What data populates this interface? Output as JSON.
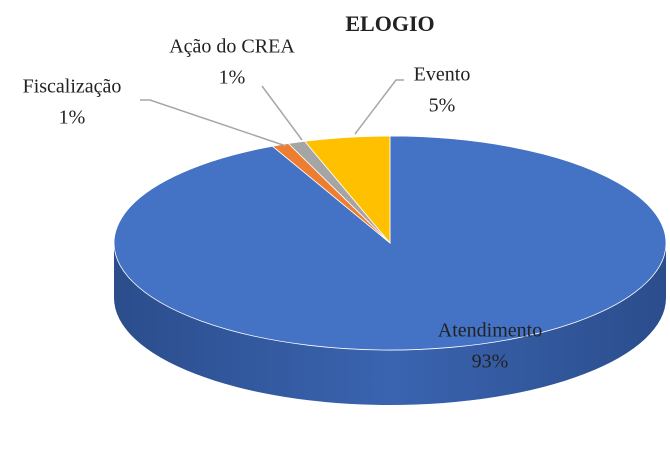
{
  "chart_data": {
    "type": "pie",
    "title": "ELOGIO",
    "categories": [
      "Atendimento",
      "Fiscalização",
      "Ação do CREA",
      "Evento"
    ],
    "values": [
      93,
      1,
      1,
      5
    ],
    "value_labels": [
      "93%",
      "1%",
      "1%",
      "5%"
    ],
    "colors": [
      "#4472c4",
      "#ed7d31",
      "#a5a5a5",
      "#ffc000"
    ]
  }
}
